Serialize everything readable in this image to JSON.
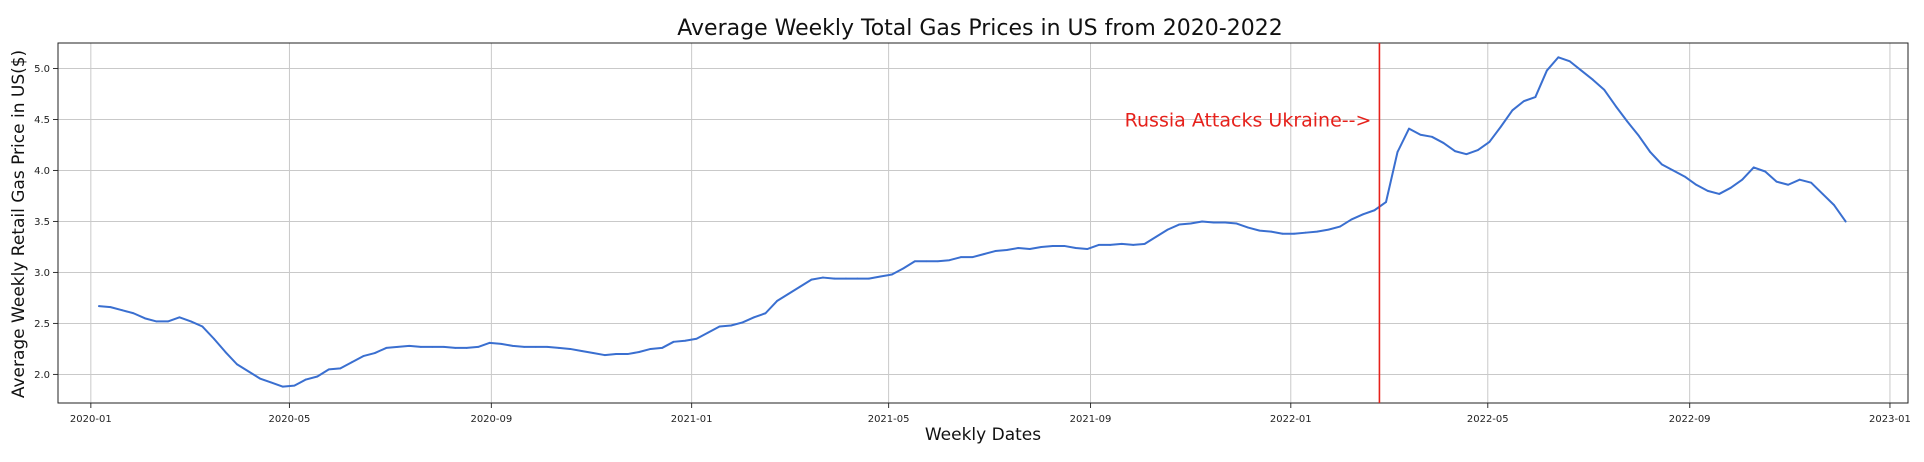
{
  "chart_data": {
    "type": "line",
    "title": "Average Weekly Total Gas Prices in US from 2020-2022",
    "xlabel": "Weekly Dates",
    "ylabel": "Average Weekly Retail Gas Price in US($)",
    "xlim": [
      "2019-12-12",
      "2023-01-12"
    ],
    "ylim": [
      1.72,
      5.25
    ],
    "grid": true,
    "legend": "none",
    "x_ticks": [
      "2020-01",
      "2020-05",
      "2020-09",
      "2021-01",
      "2021-05",
      "2021-09",
      "2022-01",
      "2022-05",
      "2022-09",
      "2023-01"
    ],
    "y_ticks": [
      "2.0",
      "2.5",
      "3.0",
      "3.5",
      "4.0",
      "4.5",
      "5.0"
    ],
    "colors": {
      "line": "#3a6fd0",
      "annotation": "#e6211b",
      "grid": "#c9c9c9"
    },
    "annotation": {
      "text": "Russia Attacks Ukraine-->",
      "date": "2022-02-24",
      "label_y": 4.5
    },
    "series": [
      {
        "values": [
          [
            "2020-01-06",
            2.67
          ],
          [
            "2020-01-13",
            2.66
          ],
          [
            "2020-01-20",
            2.63
          ],
          [
            "2020-01-27",
            2.6
          ],
          [
            "2020-02-03",
            2.55
          ],
          [
            "2020-02-10",
            2.52
          ],
          [
            "2020-02-17",
            2.52
          ],
          [
            "2020-02-24",
            2.56
          ],
          [
            "2020-03-02",
            2.52
          ],
          [
            "2020-03-09",
            2.47
          ],
          [
            "2020-03-16",
            2.35
          ],
          [
            "2020-03-23",
            2.22
          ],
          [
            "2020-03-30",
            2.1
          ],
          [
            "2020-04-06",
            2.03
          ],
          [
            "2020-04-13",
            1.96
          ],
          [
            "2020-04-20",
            1.92
          ],
          [
            "2020-04-27",
            1.88
          ],
          [
            "2020-05-04",
            1.89
          ],
          [
            "2020-05-11",
            1.95
          ],
          [
            "2020-05-18",
            1.98
          ],
          [
            "2020-05-25",
            2.05
          ],
          [
            "2020-06-01",
            2.06
          ],
          [
            "2020-06-08",
            2.12
          ],
          [
            "2020-06-15",
            2.18
          ],
          [
            "2020-06-22",
            2.21
          ],
          [
            "2020-06-29",
            2.26
          ],
          [
            "2020-07-06",
            2.27
          ],
          [
            "2020-07-13",
            2.28
          ],
          [
            "2020-07-20",
            2.27
          ],
          [
            "2020-07-27",
            2.27
          ],
          [
            "2020-08-03",
            2.27
          ],
          [
            "2020-08-10",
            2.26
          ],
          [
            "2020-08-17",
            2.26
          ],
          [
            "2020-08-24",
            2.27
          ],
          [
            "2020-08-31",
            2.31
          ],
          [
            "2020-09-07",
            2.3
          ],
          [
            "2020-09-14",
            2.28
          ],
          [
            "2020-09-21",
            2.27
          ],
          [
            "2020-09-28",
            2.27
          ],
          [
            "2020-10-05",
            2.27
          ],
          [
            "2020-10-12",
            2.26
          ],
          [
            "2020-10-19",
            2.25
          ],
          [
            "2020-10-26",
            2.23
          ],
          [
            "2020-11-02",
            2.21
          ],
          [
            "2020-11-09",
            2.19
          ],
          [
            "2020-11-16",
            2.2
          ],
          [
            "2020-11-23",
            2.2
          ],
          [
            "2020-11-30",
            2.22
          ],
          [
            "2020-12-07",
            2.25
          ],
          [
            "2020-12-14",
            2.26
          ],
          [
            "2020-12-21",
            2.32
          ],
          [
            "2020-12-28",
            2.33
          ],
          [
            "2021-01-04",
            2.35
          ],
          [
            "2021-01-11",
            2.41
          ],
          [
            "2021-01-18",
            2.47
          ],
          [
            "2021-01-25",
            2.48
          ],
          [
            "2021-02-01",
            2.51
          ],
          [
            "2021-02-08",
            2.56
          ],
          [
            "2021-02-15",
            2.6
          ],
          [
            "2021-02-22",
            2.72
          ],
          [
            "2021-03-01",
            2.79
          ],
          [
            "2021-03-08",
            2.86
          ],
          [
            "2021-03-15",
            2.93
          ],
          [
            "2021-03-22",
            2.95
          ],
          [
            "2021-03-29",
            2.94
          ],
          [
            "2021-04-05",
            2.94
          ],
          [
            "2021-04-12",
            2.94
          ],
          [
            "2021-04-19",
            2.94
          ],
          [
            "2021-04-26",
            2.96
          ],
          [
            "2021-05-03",
            2.98
          ],
          [
            "2021-05-10",
            3.04
          ],
          [
            "2021-05-17",
            3.11
          ],
          [
            "2021-05-24",
            3.11
          ],
          [
            "2021-05-31",
            3.11
          ],
          [
            "2021-06-07",
            3.12
          ],
          [
            "2021-06-14",
            3.15
          ],
          [
            "2021-06-21",
            3.15
          ],
          [
            "2021-06-28",
            3.18
          ],
          [
            "2021-07-05",
            3.21
          ],
          [
            "2021-07-12",
            3.22
          ],
          [
            "2021-07-19",
            3.24
          ],
          [
            "2021-07-26",
            3.23
          ],
          [
            "2021-08-02",
            3.25
          ],
          [
            "2021-08-09",
            3.26
          ],
          [
            "2021-08-16",
            3.26
          ],
          [
            "2021-08-23",
            3.24
          ],
          [
            "2021-08-30",
            3.23
          ],
          [
            "2021-09-06",
            3.27
          ],
          [
            "2021-09-13",
            3.27
          ],
          [
            "2021-09-20",
            3.28
          ],
          [
            "2021-09-27",
            3.27
          ],
          [
            "2021-10-04",
            3.28
          ],
          [
            "2021-10-11",
            3.35
          ],
          [
            "2021-10-18",
            3.42
          ],
          [
            "2021-10-25",
            3.47
          ],
          [
            "2021-11-01",
            3.48
          ],
          [
            "2021-11-08",
            3.5
          ],
          [
            "2021-11-15",
            3.49
          ],
          [
            "2021-11-22",
            3.49
          ],
          [
            "2021-11-29",
            3.48
          ],
          [
            "2021-12-06",
            3.44
          ],
          [
            "2021-12-13",
            3.41
          ],
          [
            "2021-12-20",
            3.4
          ],
          [
            "2021-12-27",
            3.38
          ],
          [
            "2022-01-03",
            3.38
          ],
          [
            "2022-01-10",
            3.39
          ],
          [
            "2022-01-17",
            3.4
          ],
          [
            "2022-01-24",
            3.42
          ],
          [
            "2022-01-31",
            3.45
          ],
          [
            "2022-02-07",
            3.52
          ],
          [
            "2022-02-14",
            3.57
          ],
          [
            "2022-02-21",
            3.61
          ],
          [
            "2022-02-28",
            3.69
          ],
          [
            "2022-03-07",
            4.18
          ],
          [
            "2022-03-14",
            4.41
          ],
          [
            "2022-03-21",
            4.35
          ],
          [
            "2022-03-28",
            4.33
          ],
          [
            "2022-04-04",
            4.27
          ],
          [
            "2022-04-11",
            4.19
          ],
          [
            "2022-04-18",
            4.16
          ],
          [
            "2022-04-25",
            4.2
          ],
          [
            "2022-05-02",
            4.28
          ],
          [
            "2022-05-09",
            4.43
          ],
          [
            "2022-05-16",
            4.59
          ],
          [
            "2022-05-23",
            4.68
          ],
          [
            "2022-05-30",
            4.72
          ],
          [
            "2022-06-06",
            4.98
          ],
          [
            "2022-06-13",
            5.11
          ],
          [
            "2022-06-20",
            5.07
          ],
          [
            "2022-06-27",
            4.98
          ],
          [
            "2022-07-04",
            4.89
          ],
          [
            "2022-07-11",
            4.79
          ],
          [
            "2022-07-18",
            4.63
          ],
          [
            "2022-07-25",
            4.48
          ],
          [
            "2022-08-01",
            4.34
          ],
          [
            "2022-08-08",
            4.18
          ],
          [
            "2022-08-15",
            4.06
          ],
          [
            "2022-08-22",
            4.0
          ],
          [
            "2022-08-29",
            3.94
          ],
          [
            "2022-09-05",
            3.86
          ],
          [
            "2022-09-12",
            3.8
          ],
          [
            "2022-09-19",
            3.77
          ],
          [
            "2022-09-26",
            3.83
          ],
          [
            "2022-10-03",
            3.91
          ],
          [
            "2022-10-10",
            4.03
          ],
          [
            "2022-10-17",
            3.99
          ],
          [
            "2022-10-24",
            3.89
          ],
          [
            "2022-10-31",
            3.86
          ],
          [
            "2022-11-07",
            3.91
          ],
          [
            "2022-11-14",
            3.88
          ],
          [
            "2022-11-21",
            3.77
          ],
          [
            "2022-11-28",
            3.66
          ],
          [
            "2022-12-05",
            3.5
          ]
        ]
      }
    ]
  }
}
